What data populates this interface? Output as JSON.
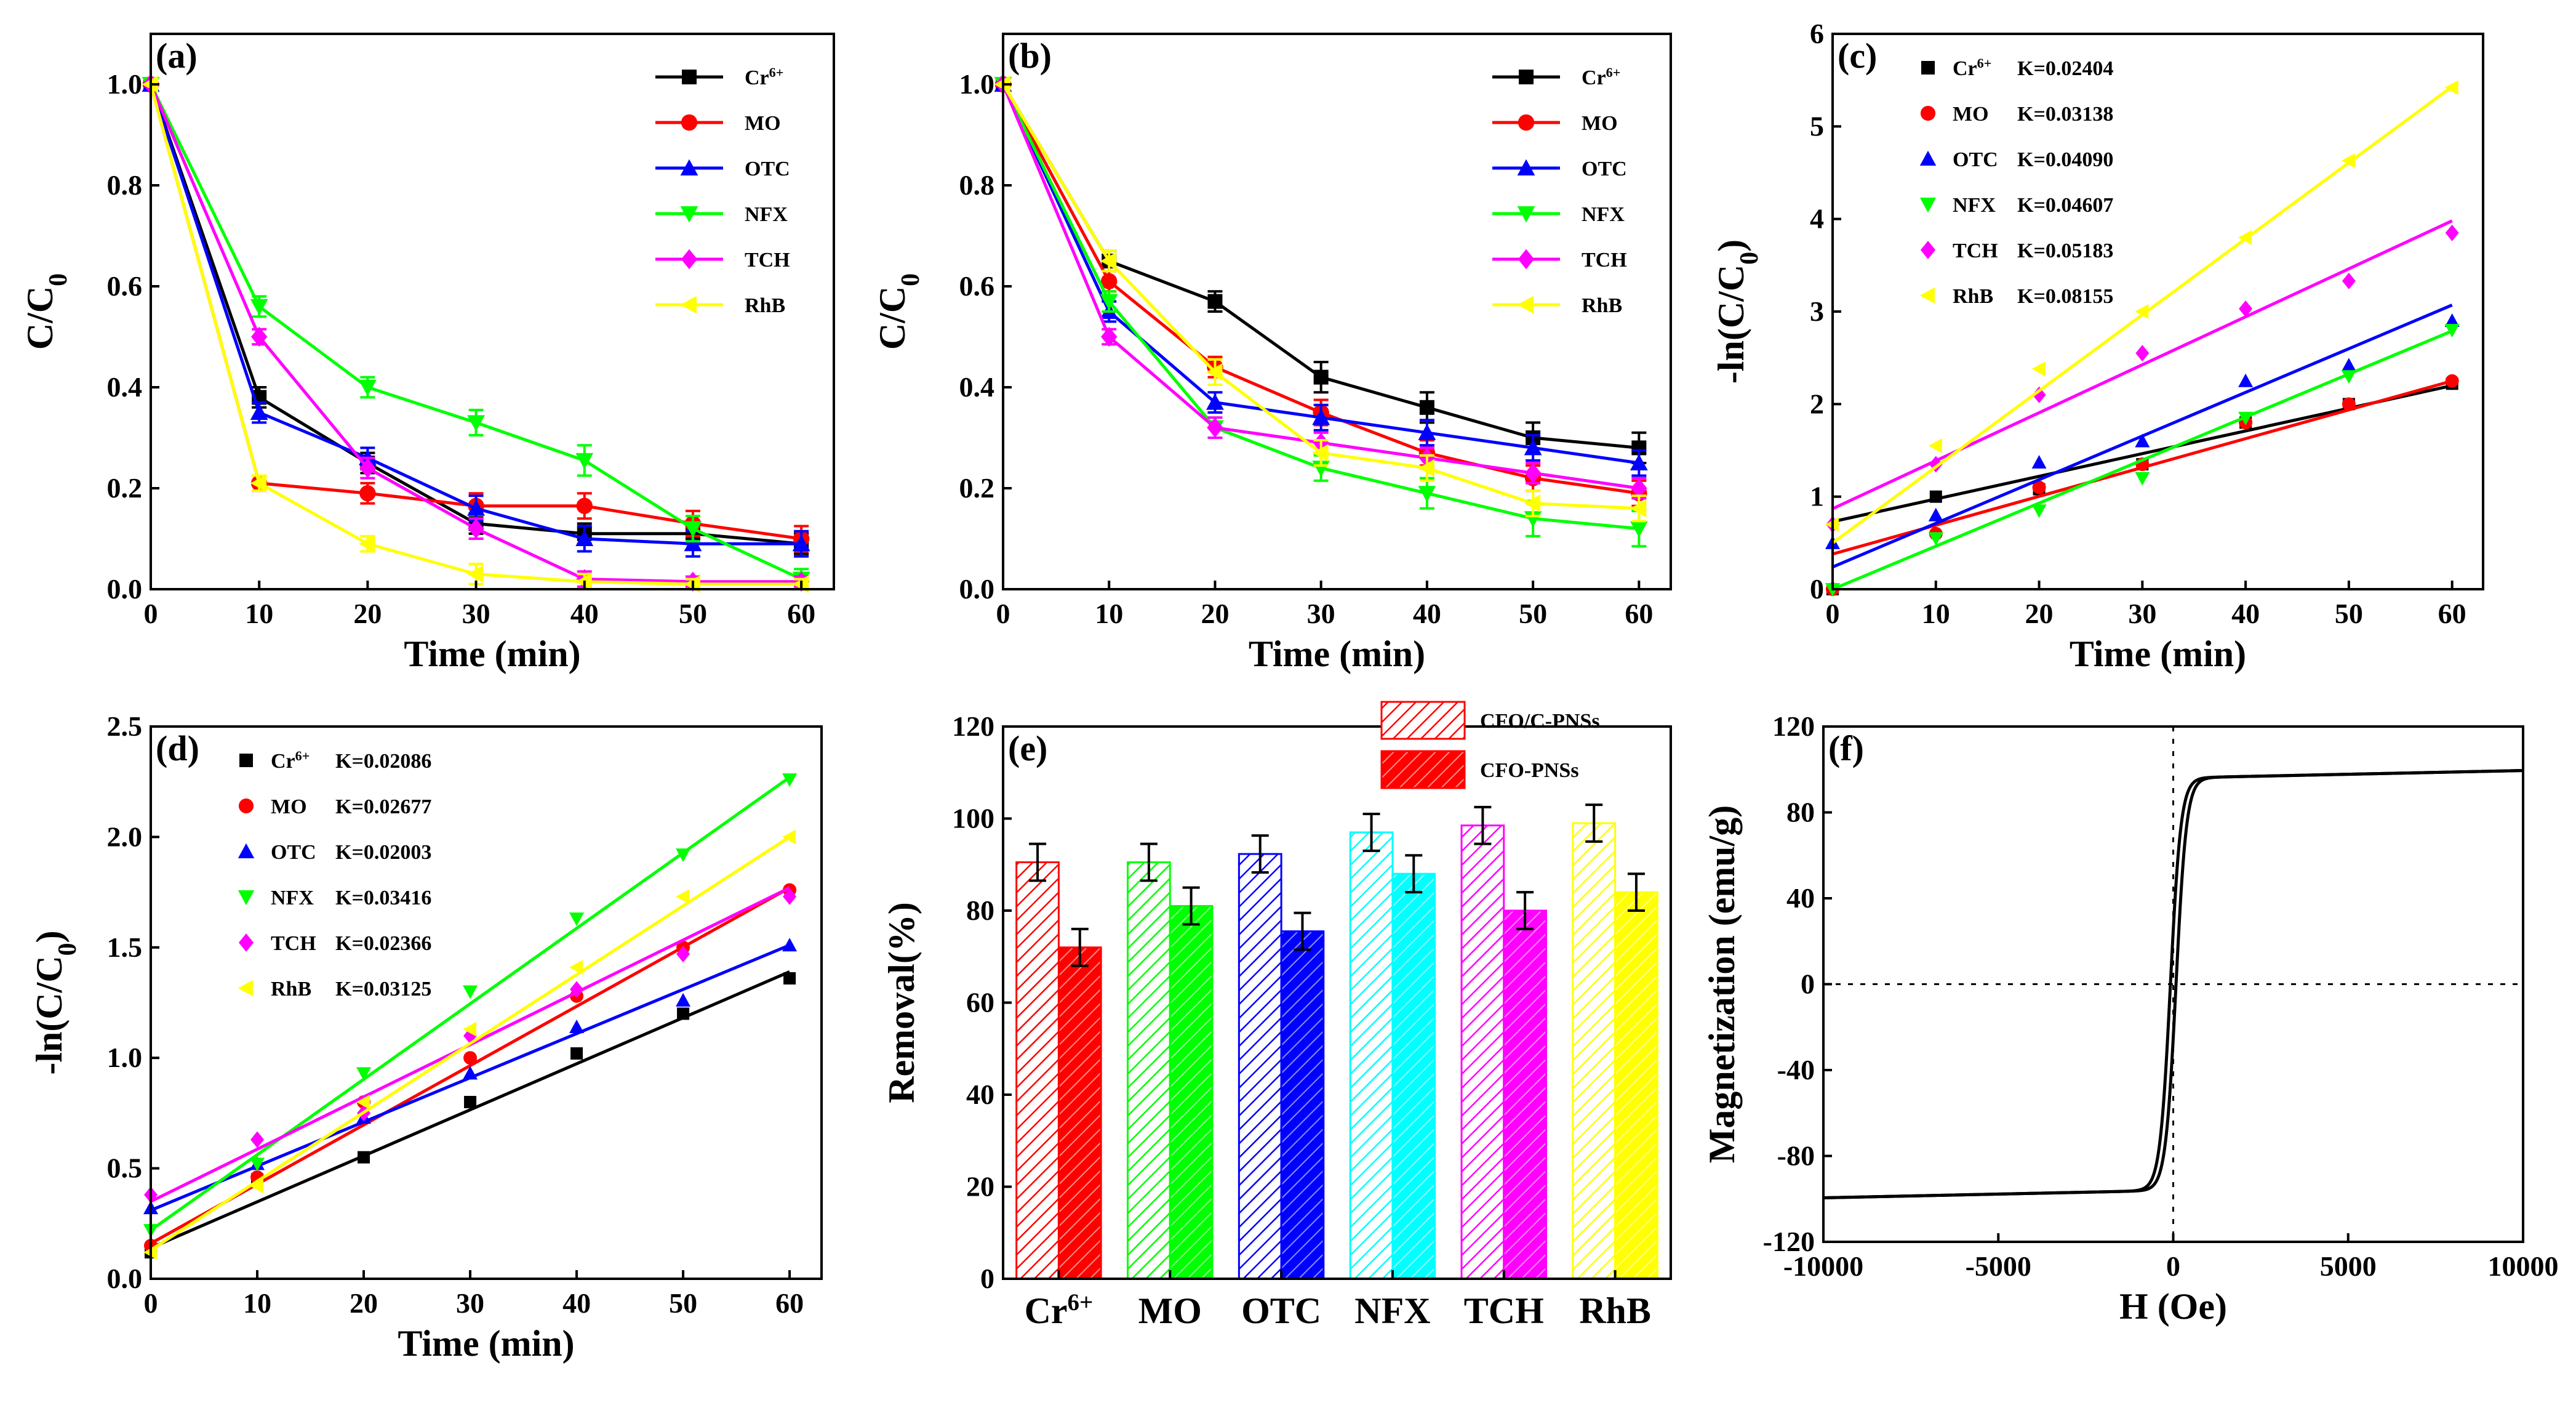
{
  "chart_data": [
    {
      "panel": "(a)",
      "type": "line",
      "xlabel": "Time (min)",
      "ylabel": "C/C0",
      "xlim": [
        0,
        63
      ],
      "ylim": [
        0,
        1.1
      ],
      "xticks": [
        0,
        10,
        20,
        30,
        40,
        50,
        60
      ],
      "yticks": [
        0.0,
        0.2,
        0.4,
        0.6,
        0.8,
        1.0
      ],
      "ytick_labels": [
        "0.0",
        "0.2",
        "0.4",
        "0.6",
        "0.8",
        "1.0"
      ],
      "legend_position": "top-right",
      "x": [
        0,
        10,
        20,
        30,
        40,
        50,
        60
      ],
      "series": [
        {
          "name": "Cr6+",
          "color": "#000000",
          "marker": "square",
          "values": [
            1.0,
            0.38,
            0.25,
            0.13,
            0.11,
            0.11,
            0.09
          ],
          "err": [
            0,
            0.02,
            0.02,
            0.02,
            0.02,
            0.02,
            0.02
          ]
        },
        {
          "name": "MO",
          "color": "#ff0000",
          "marker": "circle",
          "values": [
            1.0,
            0.21,
            0.19,
            0.165,
            0.165,
            0.13,
            0.1
          ],
          "err": [
            0,
            0.015,
            0.02,
            0.025,
            0.025,
            0.025,
            0.025
          ]
        },
        {
          "name": "OTC",
          "color": "#0000ff",
          "marker": "triangle-up",
          "values": [
            1.0,
            0.35,
            0.26,
            0.16,
            0.1,
            0.09,
            0.09
          ],
          "err": [
            0,
            0.02,
            0.02,
            0.025,
            0.025,
            0.025,
            0.025
          ]
        },
        {
          "name": "NFX",
          "color": "#00ff00",
          "marker": "triangle-down",
          "values": [
            1.0,
            0.56,
            0.4,
            0.33,
            0.255,
            0.12,
            0.02
          ],
          "err": [
            0,
            0.02,
            0.02,
            0.025,
            0.03,
            0.025,
            0.02
          ]
        },
        {
          "name": "TCH",
          "color": "#ff00ff",
          "marker": "diamond",
          "values": [
            1.0,
            0.5,
            0.24,
            0.12,
            0.02,
            0.015,
            0.015
          ],
          "err": [
            0,
            0.015,
            0.02,
            0.02,
            0.015,
            0.01,
            0.01
          ]
        },
        {
          "name": "RhB",
          "color": "#ffff00",
          "marker": "triangle-left",
          "values": [
            1.0,
            0.21,
            0.09,
            0.03,
            0.015,
            0.01,
            0.01
          ],
          "err": [
            0,
            0.015,
            0.015,
            0.02,
            0.015,
            0.01,
            0.01
          ]
        }
      ]
    },
    {
      "panel": "(b)",
      "type": "line",
      "xlabel": "Time (min)",
      "ylabel": "C/C0",
      "xlim": [
        0,
        63
      ],
      "ylim": [
        0,
        1.1
      ],
      "xticks": [
        0,
        10,
        20,
        30,
        40,
        50,
        60
      ],
      "yticks": [
        0.0,
        0.2,
        0.4,
        0.6,
        0.8,
        1.0
      ],
      "ytick_labels": [
        "0.0",
        "0.2",
        "0.4",
        "0.6",
        "0.8",
        "1.0"
      ],
      "legend_position": "top-right",
      "x": [
        0,
        10,
        20,
        30,
        40,
        50,
        60
      ],
      "series": [
        {
          "name": "Cr6+",
          "color": "#000000",
          "marker": "square",
          "values": [
            1.0,
            0.65,
            0.57,
            0.42,
            0.36,
            0.3,
            0.28
          ],
          "err": [
            0,
            0.02,
            0.02,
            0.03,
            0.03,
            0.03,
            0.03
          ]
        },
        {
          "name": "MO",
          "color": "#ff0000",
          "marker": "circle",
          "values": [
            1.0,
            0.61,
            0.44,
            0.35,
            0.27,
            0.22,
            0.19
          ],
          "err": [
            0,
            0.02,
            0.02,
            0.025,
            0.025,
            0.025,
            0.025
          ]
        },
        {
          "name": "OTC",
          "color": "#0000ff",
          "marker": "triangle-up",
          "values": [
            1.0,
            0.55,
            0.37,
            0.34,
            0.31,
            0.28,
            0.25
          ],
          "err": [
            0,
            0.02,
            0.02,
            0.025,
            0.025,
            0.025,
            0.025
          ]
        },
        {
          "name": "NFX",
          "color": "#00ff00",
          "marker": "triangle-down",
          "values": [
            1.0,
            0.57,
            0.32,
            0.24,
            0.19,
            0.14,
            0.12
          ],
          "err": [
            0,
            0.02,
            0.02,
            0.025,
            0.03,
            0.035,
            0.035
          ]
        },
        {
          "name": "TCH",
          "color": "#ff00ff",
          "marker": "diamond",
          "values": [
            1.0,
            0.5,
            0.32,
            0.29,
            0.26,
            0.23,
            0.2
          ],
          "err": [
            0,
            0.015,
            0.02,
            0.02,
            0.02,
            0.02,
            0.02
          ]
        },
        {
          "name": "RhB",
          "color": "#ffff00",
          "marker": "triangle-left",
          "values": [
            1.0,
            0.65,
            0.43,
            0.27,
            0.24,
            0.17,
            0.16
          ],
          "err": [
            0,
            0.02,
            0.025,
            0.025,
            0.025,
            0.025,
            0.025
          ]
        }
      ]
    },
    {
      "panel": "(c)",
      "type": "scatter",
      "fit": "linear",
      "xlabel": "Time (min)",
      "ylabel": "-ln(C/C0)",
      "xlim": [
        0,
        63
      ],
      "ylim": [
        0,
        6
      ],
      "xticks": [
        0,
        10,
        20,
        30,
        40,
        50,
        60
      ],
      "yticks": [
        0,
        1,
        2,
        3,
        4,
        5,
        6
      ],
      "ytick_labels": [
        "0",
        "1",
        "2",
        "3",
        "4",
        "5",
        "6"
      ],
      "legend_position": "top-left",
      "x": [
        0,
        10,
        20,
        30,
        40,
        50,
        60
      ],
      "series": [
        {
          "name": "Cr6+",
          "k_label": "K=0.02404",
          "color": "#000000",
          "marker": "square",
          "values": [
            0,
            1.0,
            1.08,
            1.35,
            1.8,
            2.0,
            2.22
          ],
          "fit": [
            0.73,
            2.2
          ]
        },
        {
          "name": "MO",
          "k_label": "K=0.03138",
          "color": "#ff0000",
          "marker": "circle",
          "values": [
            0,
            0.6,
            1.1,
            1.35,
            1.8,
            2.0,
            2.25
          ],
          "fit": [
            0.38,
            2.25
          ]
        },
        {
          "name": "OTC",
          "k_label": "K=0.04090",
          "color": "#0000ff",
          "marker": "triangle-up",
          "values": [
            0.5,
            0.8,
            1.37,
            1.6,
            2.25,
            2.42,
            2.9
          ],
          "fit": [
            0.24,
            3.07
          ]
        },
        {
          "name": "NFX",
          "k_label": "K=0.04607",
          "color": "#00ff00",
          "marker": "triangle-down",
          "values": [
            0,
            0.55,
            0.85,
            1.2,
            1.85,
            2.3,
            2.8
          ],
          "fit": [
            0.0,
            2.79
          ]
        },
        {
          "name": "TCH",
          "k_label": "K=0.05183",
          "color": "#ff00ff",
          "marker": "diamond",
          "values": [
            0.7,
            1.35,
            2.1,
            2.55,
            3.03,
            3.33,
            3.85
          ],
          "fit": [
            0.87,
            3.98
          ]
        },
        {
          "name": "RhB",
          "k_label": "K=0.08155",
          "color": "#ffff00",
          "marker": "triangle-left",
          "values": [
            0.7,
            1.55,
            2.38,
            3.0,
            3.8,
            4.63,
            5.42
          ],
          "fit": [
            0.5,
            5.43
          ]
        }
      ]
    },
    {
      "panel": "(d)",
      "type": "scatter",
      "fit": "linear",
      "xlabel": "Time (min)",
      "ylabel": "-ln(C/C0)",
      "xlim": [
        0,
        63
      ],
      "ylim": [
        0,
        2.5
      ],
      "xticks": [
        0,
        10,
        20,
        30,
        40,
        50,
        60
      ],
      "yticks": [
        0.0,
        0.5,
        1.0,
        1.5,
        2.0,
        2.5
      ],
      "ytick_labels": [
        "0.0",
        "0.5",
        "1.0",
        "1.5",
        "2.0",
        "2.5"
      ],
      "legend_position": "top-left",
      "x": [
        0,
        10,
        20,
        30,
        40,
        50,
        60
      ],
      "series": [
        {
          "name": "Cr6+",
          "k_label": "K=0.02086",
          "color": "#000000",
          "marker": "square",
          "values": [
            0.12,
            0.45,
            0.55,
            0.8,
            1.02,
            1.2,
            1.36
          ],
          "fit": [
            0.14,
            1.39
          ]
        },
        {
          "name": "MO",
          "k_label": "K=0.02677",
          "color": "#ff0000",
          "marker": "circle",
          "values": [
            0.15,
            0.46,
            0.8,
            1.0,
            1.28,
            1.5,
            1.76
          ],
          "fit": [
            0.16,
            1.77
          ]
        },
        {
          "name": "OTC",
          "k_label": "K=0.02003",
          "color": "#0000ff",
          "marker": "triangle-up",
          "values": [
            0.32,
            0.52,
            0.73,
            0.93,
            1.14,
            1.26,
            1.51
          ],
          "fit": [
            0.31,
            1.51
          ]
        },
        {
          "name": "NFX",
          "k_label": "K=0.03416",
          "color": "#00ff00",
          "marker": "triangle-down",
          "values": [
            0.22,
            0.52,
            0.93,
            1.3,
            1.63,
            1.92,
            2.26
          ],
          "fit": [
            0.22,
            2.27
          ]
        },
        {
          "name": "TCH",
          "k_label": "K=0.02366",
          "color": "#ff00ff",
          "marker": "diamond",
          "values": [
            0.38,
            0.63,
            0.75,
            1.1,
            1.31,
            1.47,
            1.73
          ],
          "fit": [
            0.35,
            1.77
          ]
        },
        {
          "name": "RhB",
          "k_label": "K=0.03125",
          "color": "#ffff00",
          "marker": "triangle-left",
          "values": [
            0.12,
            0.42,
            0.8,
            1.13,
            1.41,
            1.73,
            2.0
          ],
          "fit": [
            0.13,
            2.0
          ]
        }
      ]
    },
    {
      "panel": "(e)",
      "type": "bar",
      "xlabel": "",
      "ylabel": "Removal(%)",
      "ylim": [
        0,
        120
      ],
      "yticks": [
        0,
        20,
        40,
        60,
        80,
        100,
        120
      ],
      "ytick_labels": [
        "0",
        "20",
        "40",
        "60",
        "80",
        "100",
        "120"
      ],
      "legend_position": "top-right",
      "categories": [
        "Cr6+",
        "MO",
        "OTC",
        "NFX",
        "TCH",
        "RhB"
      ],
      "category_colors": [
        "#ff0000",
        "#00ff00",
        "#0000ff",
        "#00ffff",
        "#ff00ff",
        "#ffff00"
      ],
      "series": [
        {
          "name": "CFO/C-PNSs",
          "values": [
            90.5,
            90.5,
            92.3,
            97.0,
            98.5,
            99.0
          ],
          "err": [
            4,
            4,
            4,
            4,
            4,
            4
          ]
        },
        {
          "name": "CFO-PNSs",
          "values": [
            72.0,
            81.0,
            75.5,
            88.0,
            80.0,
            84.0
          ],
          "err": [
            4,
            4,
            4,
            4,
            4,
            4
          ]
        }
      ]
    },
    {
      "panel": "(f)",
      "type": "line",
      "xlabel": "H (Oe)",
      "ylabel": "Magnetization (emu/g)",
      "xlim": [
        -10000,
        10000
      ],
      "ylim": [
        -120,
        120
      ],
      "xticks": [
        -10000,
        -5000,
        0,
        5000,
        10000
      ],
      "xtick_labels": [
        "-10000",
        "-5000",
        "0",
        "5000",
        "10000"
      ],
      "yticks": [
        -120,
        -80,
        -40,
        0,
        40,
        80,
        120
      ],
      "ytick_labels": [
        "-120",
        "-80",
        "-40",
        "0",
        "40",
        "80",
        "120"
      ],
      "saturation": 99.5,
      "coercivity": 80,
      "field_scale": 300
    }
  ],
  "labels": {
    "superscript_6plus": "6+",
    "sub_zero": "0"
  }
}
